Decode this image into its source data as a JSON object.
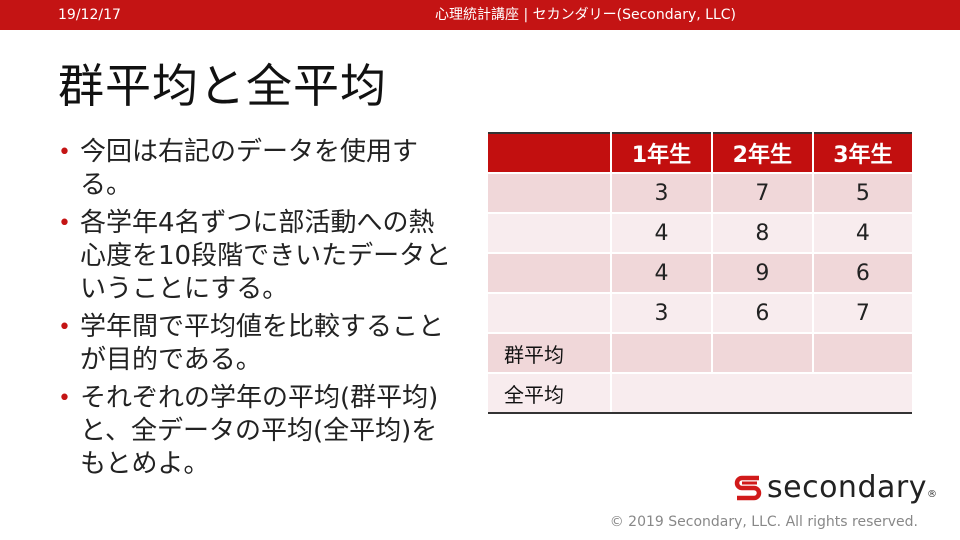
{
  "header": {
    "date": "19/12/17",
    "course": "心理統計講座 | セカンダリー(Secondary, LLC)"
  },
  "slide": {
    "title": "群平均と全平均",
    "bullets": [
      "今回は右記のデータを使用する。",
      "各学年4名ずつに部活動への熱心度を10段階できいたデータということにする。",
      "学年間で平均値を比較することが目的である。",
      "それぞれの学年の平均(群平均)と、全データの平均(全平均)をもとめよ。"
    ]
  },
  "table": {
    "headers": [
      "",
      "1年生",
      "2年生",
      "3年生"
    ],
    "rows": [
      [
        "",
        "3",
        "7",
        "5"
      ],
      [
        "",
        "4",
        "8",
        "4"
      ],
      [
        "",
        "4",
        "9",
        "6"
      ],
      [
        "",
        "3",
        "6",
        "7"
      ]
    ],
    "group_mean_label": "群平均",
    "grand_mean_label": "全平均"
  },
  "footer": {
    "logo_text": "secondary",
    "logo_mark": "®",
    "copyright": "© 2019 Secondary, LLC. All rights reserved."
  },
  "colors": {
    "accent": "#c41414",
    "row_odd": "#f0d7d9",
    "row_even": "#f8ecee"
  }
}
